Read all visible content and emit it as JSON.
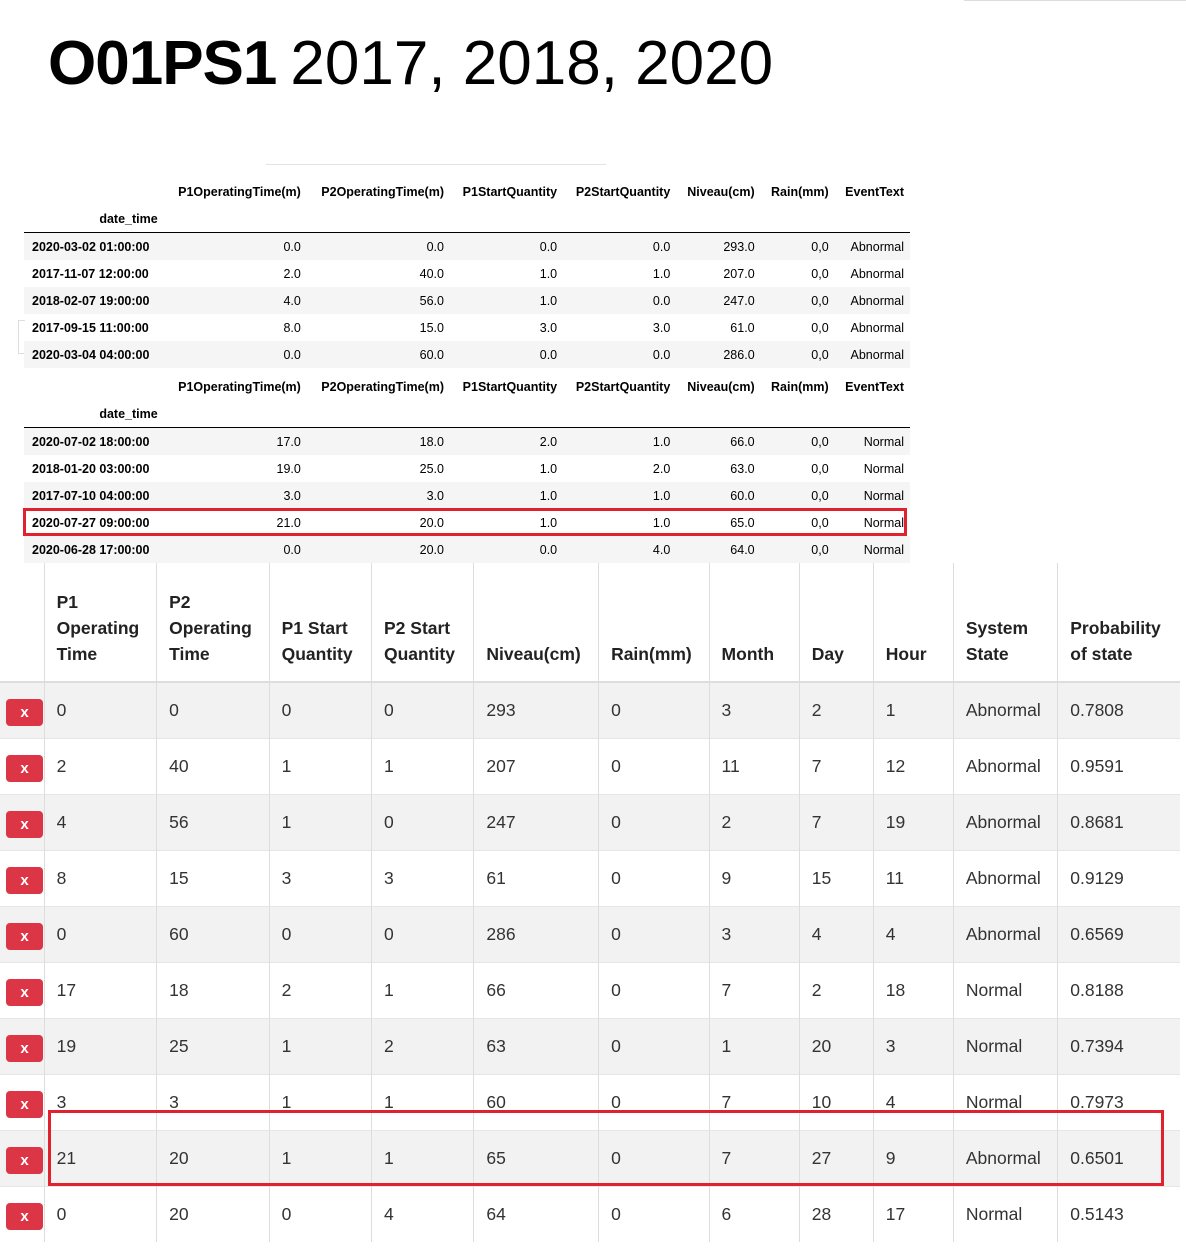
{
  "title": {
    "station": "O01PS1",
    "years": "2017, 2018, 2020"
  },
  "df_columns": [
    "P1OperatingTime(m)",
    "P2OperatingTime(m)",
    "P1StartQuantity",
    "P2StartQuantity",
    "Niveau(cm)",
    "Rain(mm)",
    "EventText"
  ],
  "df_index_name": "date_time",
  "df1_rows": [
    [
      "2020-03-02 01:00:00",
      "0.0",
      "0.0",
      "0.0",
      "0.0",
      "293.0",
      "0,0",
      "Abnormal"
    ],
    [
      "2017-11-07 12:00:00",
      "2.0",
      "40.0",
      "1.0",
      "1.0",
      "207.0",
      "0,0",
      "Abnormal"
    ],
    [
      "2018-02-07 19:00:00",
      "4.0",
      "56.0",
      "1.0",
      "0.0",
      "247.0",
      "0,0",
      "Abnormal"
    ],
    [
      "2017-09-15 11:00:00",
      "8.0",
      "15.0",
      "3.0",
      "3.0",
      "61.0",
      "0,0",
      "Abnormal"
    ],
    [
      "2020-03-04 04:00:00",
      "0.0",
      "60.0",
      "0.0",
      "0.0",
      "286.0",
      "0,0",
      "Abnormal"
    ]
  ],
  "df2_rows": [
    [
      "2020-07-02 18:00:00",
      "17.0",
      "18.0",
      "2.0",
      "1.0",
      "66.0",
      "0,0",
      "Normal"
    ],
    [
      "2018-01-20 03:00:00",
      "19.0",
      "25.0",
      "1.0",
      "2.0",
      "63.0",
      "0,0",
      "Normal"
    ],
    [
      "2017-07-10 04:00:00",
      "3.0",
      "3.0",
      "1.0",
      "1.0",
      "60.0",
      "0,0",
      "Normal"
    ],
    [
      "2020-07-27 09:00:00",
      "21.0",
      "20.0",
      "1.0",
      "1.0",
      "65.0",
      "0,0",
      "Normal"
    ],
    [
      "2020-06-28 17:00:00",
      "0.0",
      "20.0",
      "0.0",
      "4.0",
      "64.0",
      "0,0",
      "Normal"
    ]
  ],
  "grid_columns": [
    "P1 Operating Time",
    "P2 Operating Time",
    "P1 Start Quantity",
    "P2 Start Quantity",
    "Niveau(cm)",
    "Rain(mm)",
    "Month",
    "Day",
    "Hour",
    "System State",
    "Probability of state"
  ],
  "delete_label": "x",
  "grid_rows": [
    [
      "0",
      "0",
      "0",
      "0",
      "293",
      "0",
      "3",
      "2",
      "1",
      "Abnormal",
      "0.7808"
    ],
    [
      "2",
      "40",
      "1",
      "1",
      "207",
      "0",
      "11",
      "7",
      "12",
      "Abnormal",
      "0.9591"
    ],
    [
      "4",
      "56",
      "1",
      "0",
      "247",
      "0",
      "2",
      "7",
      "19",
      "Abnormal",
      "0.8681"
    ],
    [
      "8",
      "15",
      "3",
      "3",
      "61",
      "0",
      "9",
      "15",
      "11",
      "Abnormal",
      "0.9129"
    ],
    [
      "0",
      "60",
      "0",
      "0",
      "286",
      "0",
      "3",
      "4",
      "4",
      "Abnormal",
      "0.6569"
    ],
    [
      "17",
      "18",
      "2",
      "1",
      "66",
      "0",
      "7",
      "2",
      "18",
      "Normal",
      "0.8188"
    ],
    [
      "19",
      "25",
      "1",
      "2",
      "63",
      "0",
      "1",
      "20",
      "3",
      "Normal",
      "0.7394"
    ],
    [
      "3",
      "3",
      "1",
      "1",
      "60",
      "0",
      "7",
      "10",
      "4",
      "Normal",
      "0.7973"
    ],
    [
      "21",
      "20",
      "1",
      "1",
      "65",
      "0",
      "7",
      "27",
      "9",
      "Abnormal",
      "0.6501"
    ],
    [
      "0",
      "20",
      "0",
      "4",
      "64",
      "0",
      "6",
      "28",
      "17",
      "Normal",
      "0.5143"
    ]
  ],
  "highlight_color": "#e0222e",
  "delete_button_color": "#dc3545"
}
